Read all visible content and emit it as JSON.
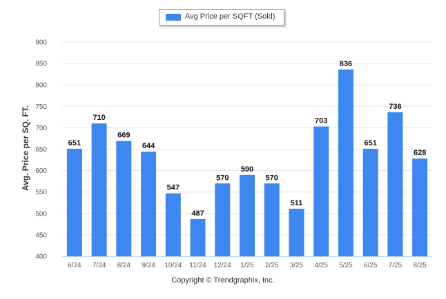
{
  "chart_data": {
    "type": "bar",
    "categories": [
      "6/24",
      "7/24",
      "8/24",
      "9/24",
      "10/24",
      "11/24",
      "12/24",
      "1/25",
      "2/25",
      "3/25",
      "4/25",
      "5/25",
      "6/25",
      "7/25",
      "8/25"
    ],
    "series": [
      {
        "name": "Avg Price per SQFT (Sold)",
        "values": [
          651,
          710,
          669,
          644,
          547,
          487,
          570,
          590,
          570,
          511,
          703,
          836,
          651,
          736,
          628
        ]
      }
    ],
    "title": "",
    "xlabel": "",
    "ylabel": "Avg. Price per SQ. FT.",
    "ylim": [
      400,
      900
    ],
    "yticks": [
      400,
      450,
      500,
      550,
      600,
      650,
      700,
      750,
      800,
      850,
      900
    ],
    "grid": true,
    "legend_position": "top-center",
    "data_labels": true,
    "colors": {
      "bar": "#3e86f0",
      "grid": "#e6e6e6",
      "axis": "#c0d0e0",
      "text": "#333333"
    }
  },
  "footer": {
    "copyright": "Copyright © Trendgraphix, Inc."
  }
}
